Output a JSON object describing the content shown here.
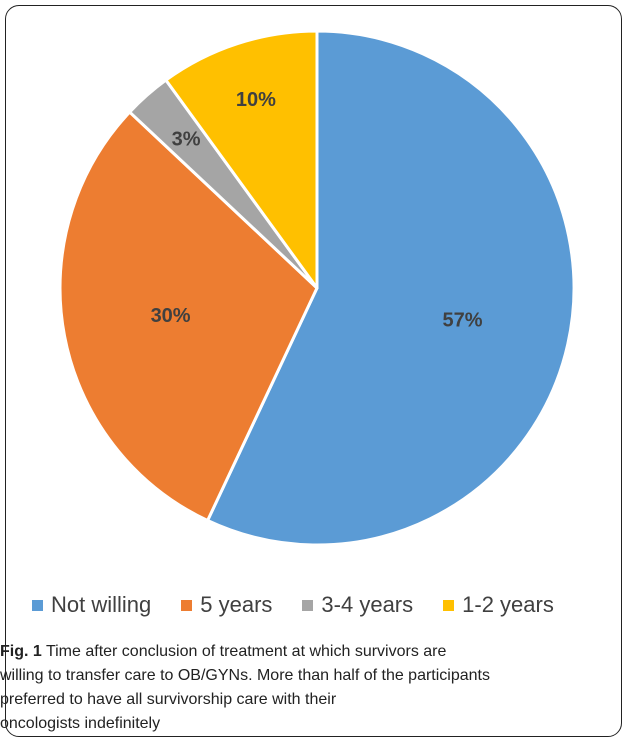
{
  "chart_data": {
    "type": "pie",
    "categories": [
      "Not willing",
      "5 years",
      "3-4 years",
      "1-2 years"
    ],
    "values": [
      57,
      30,
      3,
      10
    ],
    "labels": [
      "57%",
      "30%",
      "3%",
      "10%"
    ],
    "colors": [
      "#5B9BD5",
      "#ED7D31",
      "#A5A5A5",
      "#FFC000"
    ],
    "title": "",
    "legend_position": "bottom"
  },
  "legend": {
    "items": [
      {
        "label": "Not willing",
        "color": "#5B9BD5"
      },
      {
        "label": "5 years",
        "color": "#ED7D31"
      },
      {
        "label": "3-4 years",
        "color": "#A5A5A5"
      },
      {
        "label": "1-2 years",
        "color": "#FFC000"
      }
    ]
  },
  "caption": {
    "fig_label": "Fig. 1",
    "line1": "Time after conclusion of treatment at which survivors are",
    "line2": "willing to transfer care to OB/GYNs. More than half of the participants",
    "line3": "preferred to have all survivorship care with their",
    "line4": "oncologists indefinitely"
  }
}
